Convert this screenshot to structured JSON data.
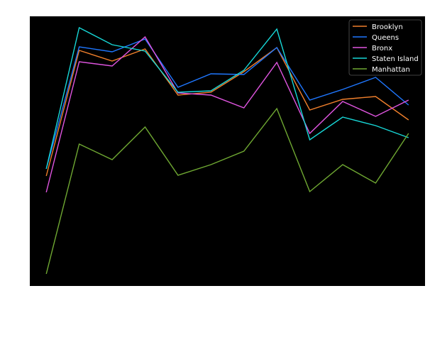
{
  "chart_data": {
    "type": "line",
    "title": "",
    "xlabel": "",
    "ylabel": "",
    "x": [
      0,
      1,
      2,
      3,
      4,
      5,
      6,
      7,
      8,
      9,
      10,
      11
    ],
    "xlim": [
      -0.5,
      11.5
    ],
    "ylim": [
      0,
      380
    ],
    "grid": false,
    "legend_position": "top-right",
    "background": "#000000",
    "series": [
      {
        "name": "Brooklyn",
        "color": "#f07f2c",
        "values": [
          155,
          332,
          317,
          334,
          269,
          273,
          302,
          336,
          248,
          263,
          267,
          234
        ]
      },
      {
        "name": "Queens",
        "color": "#1f77ff",
        "values": [
          165,
          337,
          330,
          348,
          280,
          299,
          298,
          336,
          262,
          277,
          294,
          255
        ]
      },
      {
        "name": "Bronx",
        "color": "#e055e0",
        "values": [
          132,
          316,
          310,
          351,
          272,
          269,
          251,
          315,
          215,
          260,
          239,
          262
        ]
      },
      {
        "name": "Staten Island",
        "color": "#17d8d8",
        "values": [
          165,
          364,
          340,
          331,
          273,
          275,
          304,
          362,
          206,
          238,
          226,
          209
        ]
      },
      {
        "name": "Manhattan",
        "color": "#6fa832",
        "values": [
          17,
          200,
          178,
          224,
          156,
          171,
          190,
          250,
          133,
          171,
          145,
          215
        ]
      }
    ]
  }
}
